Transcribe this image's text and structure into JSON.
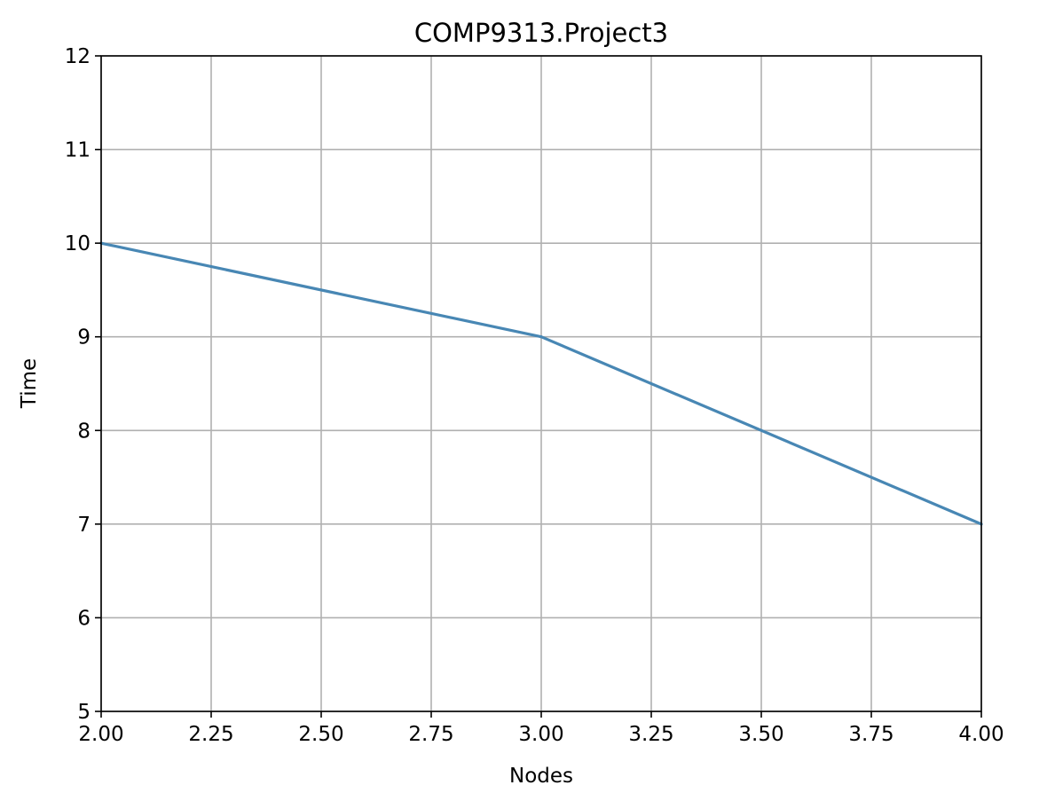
{
  "chart_data": {
    "type": "line",
    "title": "COMP9313.Project3",
    "xlabel": "Nodes",
    "ylabel": "Time",
    "xlim": [
      2.0,
      4.0
    ],
    "ylim": [
      5,
      12
    ],
    "grid": true,
    "x_ticks": [
      "2.00",
      "2.25",
      "2.50",
      "2.75",
      "3.00",
      "3.25",
      "3.50",
      "3.75",
      "4.00"
    ],
    "y_ticks": [
      "5",
      "6",
      "7",
      "8",
      "9",
      "10",
      "11",
      "12"
    ],
    "series": [
      {
        "x": [
          2,
          3,
          4
        ],
        "y": [
          10,
          9,
          7
        ],
        "color": "#4887b4"
      }
    ]
  }
}
